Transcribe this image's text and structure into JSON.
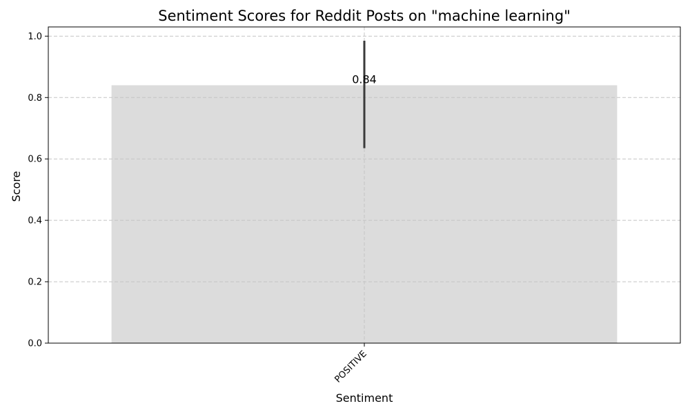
{
  "chart_data": {
    "type": "bar",
    "title": "Sentiment Scores for Reddit Posts on \"machine learning\"",
    "xlabel": "Sentiment",
    "ylabel": "Score",
    "categories": [
      "POSITIVE"
    ],
    "values": [
      0.84
    ],
    "value_labels": [
      "0.84"
    ],
    "error_bars": [
      {
        "low": 0.635,
        "high": 0.985
      }
    ],
    "ylim": [
      0,
      1.03
    ],
    "yticks": [
      0.0,
      0.2,
      0.4,
      0.6,
      0.8,
      1.0
    ],
    "ytick_labels": [
      "0.0",
      "0.2",
      "0.4",
      "0.6",
      "0.8",
      "1.0"
    ],
    "grid": true,
    "x_tick_rotation_deg": 45,
    "colors": {
      "bar": "#dcdcdc",
      "error_bar": "#3a3a3a",
      "grid": "#c4c4c4",
      "axis": "#000000",
      "text": "#000000"
    }
  }
}
